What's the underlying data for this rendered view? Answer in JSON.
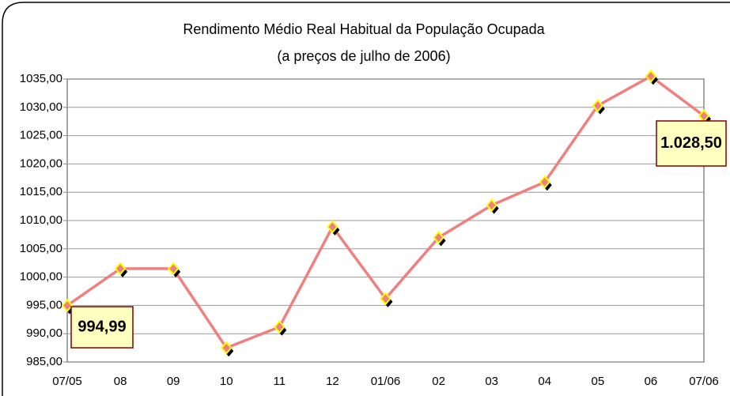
{
  "chart_data": {
    "type": "line",
    "title": "Rendimento Médio Real Habitual da População Ocupada",
    "subtitle": "(a preços de julho de 2006)",
    "categories": [
      "07/05",
      "08",
      "09",
      "10",
      "11",
      "12",
      "01/06",
      "02",
      "03",
      "04",
      "05",
      "06",
      "07/06"
    ],
    "values": [
      994.99,
      1001.5,
      1001.5,
      987.5,
      991.2,
      1008.9,
      996.2,
      1007.0,
      1012.7,
      1016.8,
      1030.3,
      1035.5,
      1028.5
    ],
    "value_labels": [
      "994,99",
      null,
      null,
      null,
      null,
      null,
      null,
      null,
      null,
      null,
      null,
      null,
      "1.028,50"
    ],
    "color": "#f08080",
    "ylim": [
      985,
      1035
    ],
    "yticks": [
      {
        "value": 985,
        "label": "985,00"
      },
      {
        "value": 990,
        "label": "990,00"
      },
      {
        "value": 995,
        "label": "995,00"
      },
      {
        "value": 1000,
        "label": "1000,00"
      },
      {
        "value": 1005,
        "label": "1005,00"
      },
      {
        "value": 1010,
        "label": "1010,00"
      },
      {
        "value": 1015,
        "label": "1015,00"
      },
      {
        "value": 1020,
        "label": "1020,00"
      },
      {
        "value": 1025,
        "label": "1025,00"
      },
      {
        "value": 1030,
        "label": "1030,00"
      },
      {
        "value": 1035,
        "label": "1035,00"
      }
    ],
    "grid": true
  }
}
